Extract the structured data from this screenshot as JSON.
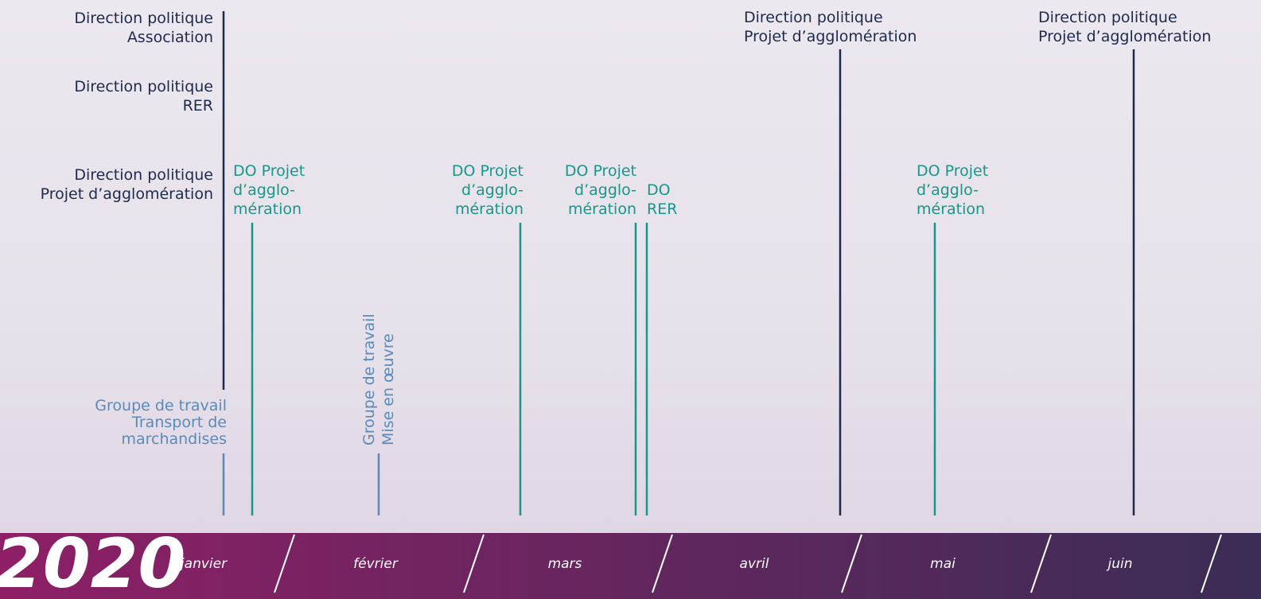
{
  "timeline": {
    "year": "2020",
    "months": [
      "janvier",
      "février",
      "mars",
      "avril",
      "mai",
      "juin"
    ]
  },
  "events": [
    {
      "lines": [
        "Direction politique",
        "Association"
      ]
    },
    {
      "lines": [
        "Direction politique",
        "RER"
      ]
    },
    {
      "lines": [
        "Direction politique",
        "Projet d’agglomération"
      ]
    },
    {
      "lines": [
        "Groupe de travail",
        "Transport de",
        "marchandises"
      ]
    },
    {
      "lines": [
        "DO Projet",
        "d’agglo-",
        "mération"
      ]
    },
    {
      "lines": [
        "Groupe de travail",
        "Mise en œuvre"
      ]
    },
    {
      "lines": [
        "DO Projet",
        "d’agglo-",
        "mération"
      ]
    },
    {
      "lines": [
        "DO Projet",
        "d’agglo-",
        "mération"
      ]
    },
    {
      "lines": [
        "DO",
        "RER"
      ]
    },
    {
      "lines": [
        "Direction politique",
        "Projet d’agglomération"
      ]
    },
    {
      "lines": [
        "DO Projet",
        "d’agglo-",
        "mération"
      ]
    },
    {
      "lines": [
        "Direction politique",
        "Projet d’agglomération"
      ]
    }
  ]
}
